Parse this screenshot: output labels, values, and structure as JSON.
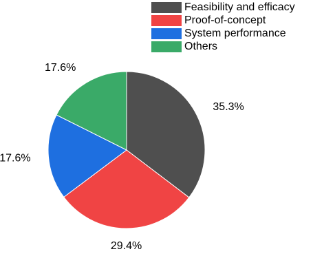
{
  "chart_data": {
    "type": "pie",
    "title": "",
    "legend_position": "top-right",
    "start_angle_deg": 90,
    "direction": "clockwise",
    "slices": [
      {
        "label": "Feasibility and efficacy",
        "value": 35.3,
        "value_label": "35.3%",
        "color": "#4f4f4f"
      },
      {
        "label": "Proof-of-concept",
        "value": 29.4,
        "value_label": "29.4%",
        "color": "#f04444"
      },
      {
        "label": "System performance",
        "value": 17.6,
        "value_label": "17.6%",
        "color": "#1e6fe0"
      },
      {
        "label": "Others",
        "value": 17.6,
        "value_label": "17.6%",
        "color": "#3aaa68"
      }
    ]
  }
}
